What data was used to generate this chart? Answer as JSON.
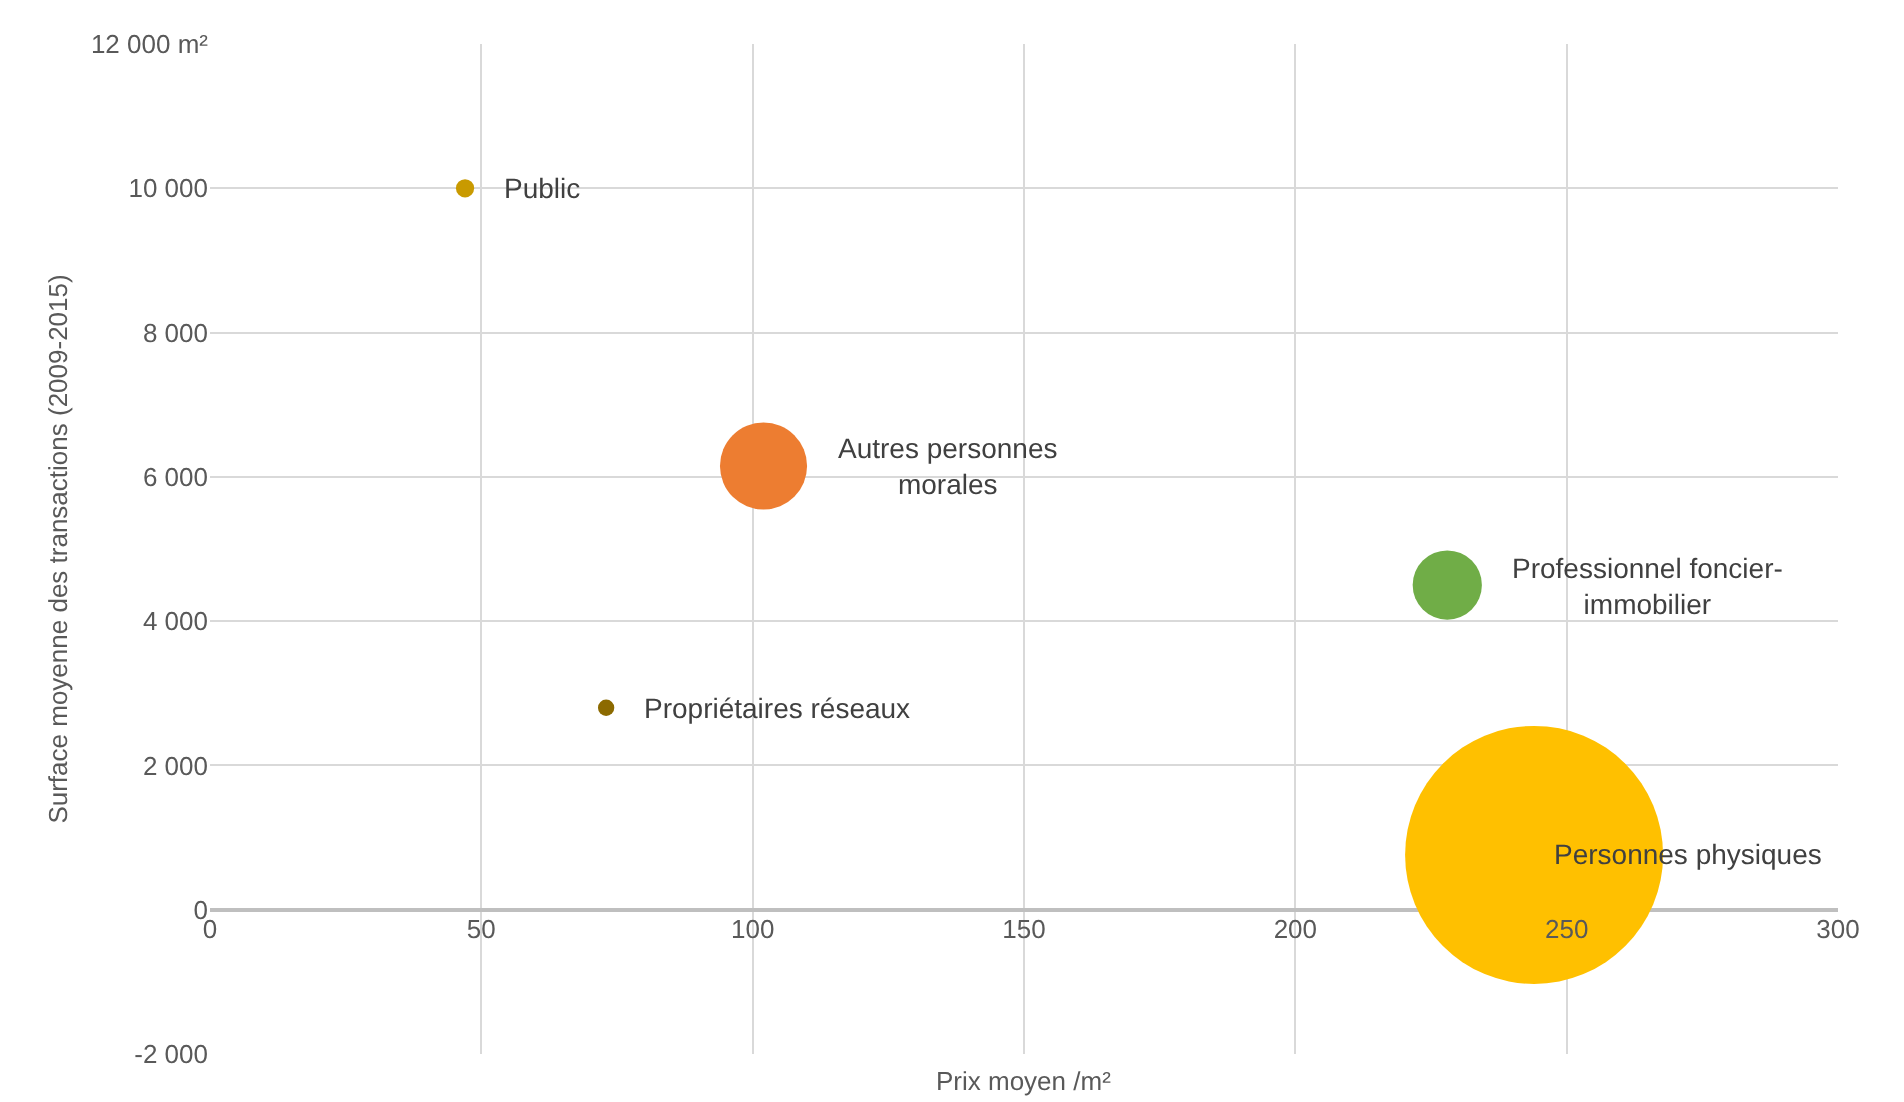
{
  "chart_data": {
    "type": "bubble",
    "xlabel": "Prix moyen /m²",
    "ylabel": "Surface moyenne des transactions (2009-2015)",
    "series": [
      {
        "name": "Public",
        "color": "#c99a00",
        "x": [
          47
        ],
        "values": [
          10000
        ],
        "sizes": [
          0.005
        ]
      },
      {
        "name": "Autres personnes\nmorales",
        "color": "#ed7d31",
        "x": [
          102
        ],
        "values": [
          6150
        ],
        "sizes": [
          0.114
        ]
      },
      {
        "name": "Professionnel foncier-\nimmobilier",
        "color": "#70ad47",
        "x": [
          228
        ],
        "values": [
          4500
        ],
        "sizes": [
          0.072
        ]
      },
      {
        "name": "Propriétaires réseaux",
        "color": "#8c6a00",
        "x": [
          73
        ],
        "values": [
          2800
        ],
        "sizes": [
          0.004
        ]
      },
      {
        "name": "Personnes physiques",
        "color": "#ffc000",
        "x": [
          244
        ],
        "values": [
          760
        ],
        "sizes": [
          1
        ]
      }
    ],
    "xlim": [
      0,
      300
    ],
    "ylim": [
      -2000,
      12000
    ],
    "xticks": [
      0,
      50,
      100,
      150,
      200,
      250,
      300
    ],
    "yticks": [
      {
        "value": -2000,
        "label": "-2 000"
      },
      0,
      {
        "value": 2000,
        "label": "2 000"
      },
      {
        "value": 4000,
        "label": "4 000"
      },
      {
        "value": 6000,
        "label": "6 000"
      },
      {
        "value": 8000,
        "label": "8 000"
      },
      {
        "value": 10000,
        "label": "10 000"
      },
      {
        "value": 12000,
        "label": "12 000 m²"
      }
    ],
    "grid": true
  }
}
